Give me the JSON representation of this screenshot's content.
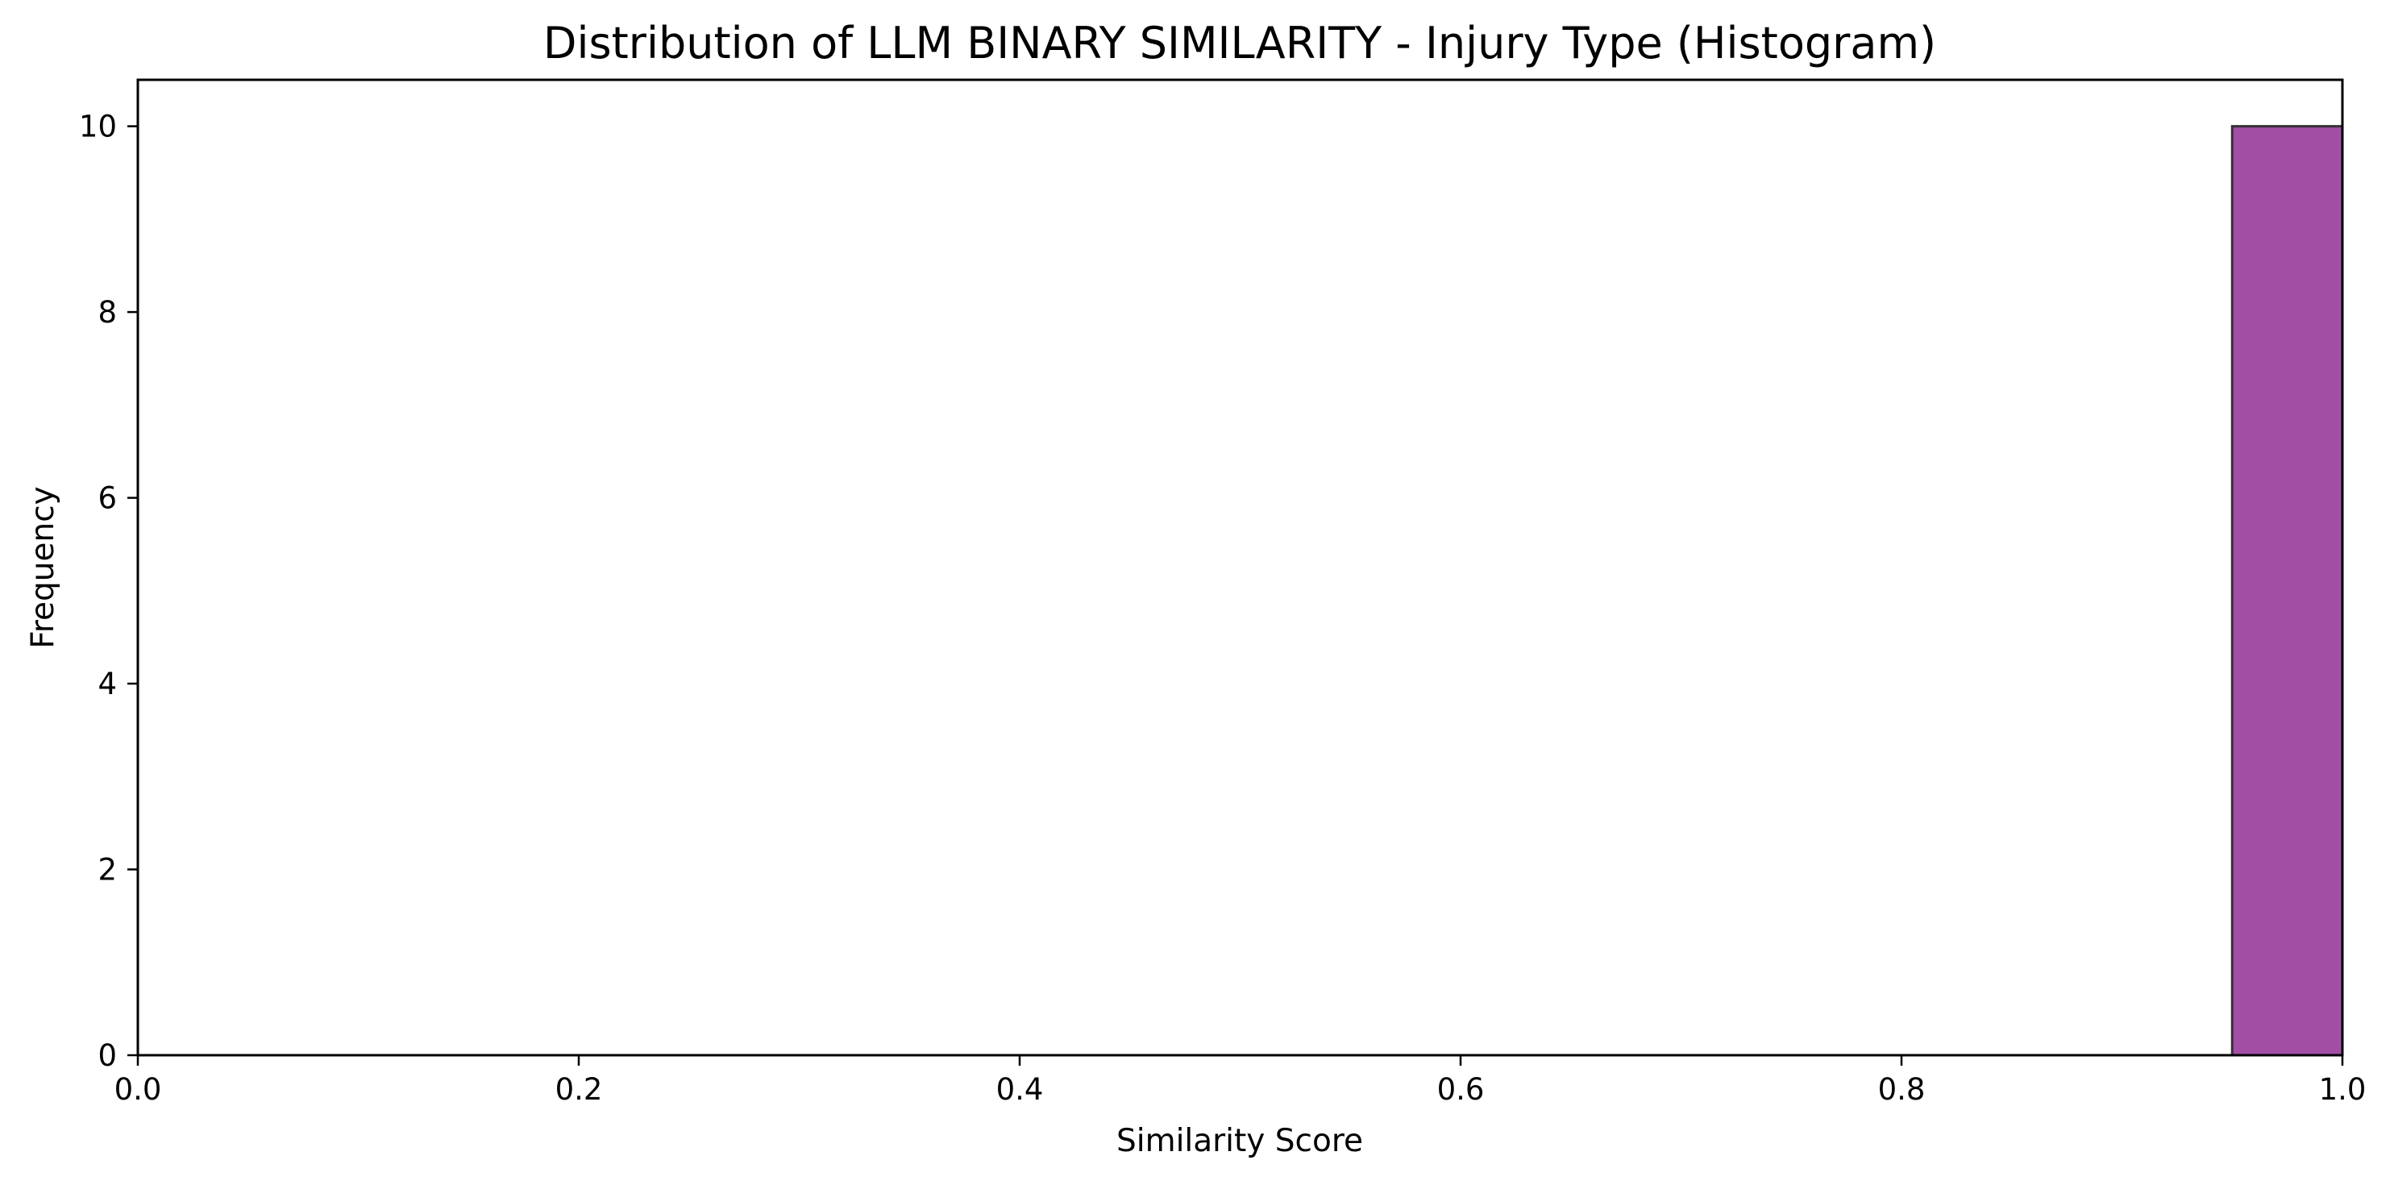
{
  "chart_data": {
    "type": "bar",
    "title": "Distribution of LLM BINARY SIMILARITY - Injury Type (Histogram)",
    "xlabel": "Similarity Score",
    "ylabel": "Frequency",
    "xlim": [
      0.0,
      1.0
    ],
    "ylim": [
      0,
      10.5
    ],
    "xticks": [
      "0.0",
      "0.2",
      "0.4",
      "0.6",
      "0.8",
      "1.0"
    ],
    "yticks": [
      "0",
      "2",
      "4",
      "6",
      "8",
      "10"
    ],
    "bins": [
      {
        "x0": 0.95,
        "x1": 1.0,
        "count": 10
      }
    ],
    "bar_color": "#a34ea5",
    "edge_color": "#333333",
    "grid": false,
    "legend": "none"
  }
}
